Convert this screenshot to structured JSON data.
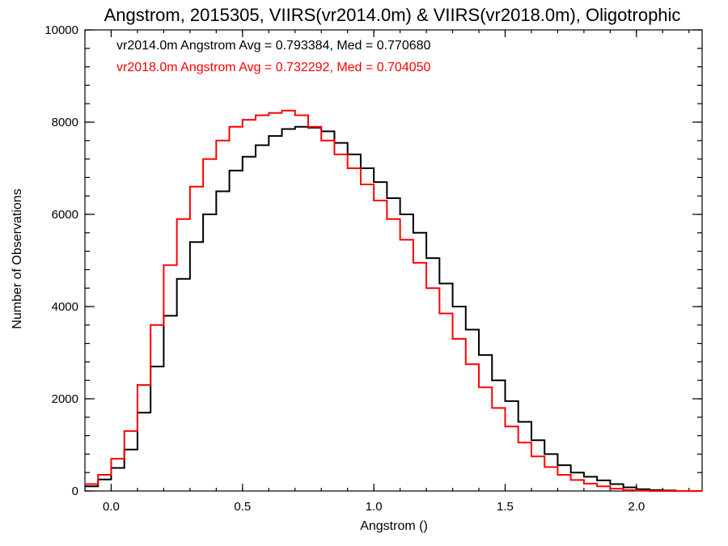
{
  "chart_data": {
    "type": "line",
    "title": "Angstrom, 2015305, VIIRS(vr2014.0m) & VIIRS(vr2018.0m), Oligotrophic",
    "xlabel": "Angstrom ()",
    "ylabel": "Number of Observations",
    "xlim": [
      -0.1,
      2.25
    ],
    "ylim": [
      0,
      10000
    ],
    "xticks": [
      0.0,
      0.5,
      1.0,
      1.5,
      2.0
    ],
    "xtick_labels": [
      "0.0",
      "0.5",
      "1.0",
      "1.5",
      "2.0"
    ],
    "yticks": [
      0,
      2000,
      4000,
      6000,
      8000,
      10000
    ],
    "ytick_labels": [
      "0",
      "2000",
      "4000",
      "6000",
      "8000",
      "10000"
    ],
    "grid": false,
    "legend_placement": "top-left",
    "series": [
      {
        "name": "vr2014.0m",
        "legend_text": "vr2014.0m Angstrom Avg = 0.793384, Med = 0.770680",
        "color": "#000000",
        "step": true,
        "x": [
          -0.1,
          -0.05,
          0.0,
          0.05,
          0.1,
          0.15,
          0.2,
          0.25,
          0.3,
          0.35,
          0.4,
          0.45,
          0.5,
          0.55,
          0.6,
          0.65,
          0.7,
          0.75,
          0.8,
          0.85,
          0.9,
          0.95,
          1.0,
          1.05,
          1.1,
          1.15,
          1.2,
          1.25,
          1.3,
          1.35,
          1.4,
          1.45,
          1.5,
          1.55,
          1.6,
          1.65,
          1.7,
          1.75,
          1.8,
          1.85,
          1.9,
          1.95,
          2.0,
          2.05,
          2.1,
          2.15,
          2.2,
          2.25
        ],
        "y": [
          100,
          250,
          500,
          900,
          1700,
          2700,
          3800,
          4600,
          5400,
          6000,
          6500,
          6950,
          7250,
          7500,
          7700,
          7850,
          7900,
          7880,
          7800,
          7550,
          7300,
          7000,
          6700,
          6350,
          6000,
          5600,
          5050,
          4500,
          4000,
          3500,
          2950,
          2400,
          1950,
          1500,
          1100,
          800,
          560,
          400,
          310,
          230,
          150,
          80,
          40,
          20,
          10,
          0,
          0,
          0
        ]
      },
      {
        "name": "vr2018.0m",
        "legend_text": "vr2018.0m Angstrom Avg = 0.732292, Med = 0.704050",
        "color": "#ff0000",
        "step": true,
        "x": [
          -0.1,
          -0.05,
          0.0,
          0.05,
          0.1,
          0.15,
          0.2,
          0.25,
          0.3,
          0.35,
          0.4,
          0.45,
          0.5,
          0.55,
          0.6,
          0.65,
          0.7,
          0.75,
          0.8,
          0.85,
          0.9,
          0.95,
          1.0,
          1.05,
          1.1,
          1.15,
          1.2,
          1.25,
          1.3,
          1.35,
          1.4,
          1.45,
          1.5,
          1.55,
          1.6,
          1.65,
          1.7,
          1.75,
          1.8,
          1.85,
          1.9,
          1.95,
          2.0,
          2.05,
          2.1,
          2.15,
          2.2,
          2.25
        ],
        "y": [
          150,
          350,
          700,
          1300,
          2300,
          3600,
          4900,
          5900,
          6600,
          7200,
          7600,
          7900,
          8050,
          8150,
          8200,
          8250,
          8150,
          7900,
          7600,
          7300,
          7000,
          6650,
          6300,
          5900,
          5450,
          4950,
          4400,
          3850,
          3300,
          2750,
          2250,
          1800,
          1400,
          1050,
          750,
          520,
          350,
          240,
          160,
          100,
          50,
          20,
          10,
          0,
          0,
          0,
          0,
          0
        ]
      }
    ]
  }
}
